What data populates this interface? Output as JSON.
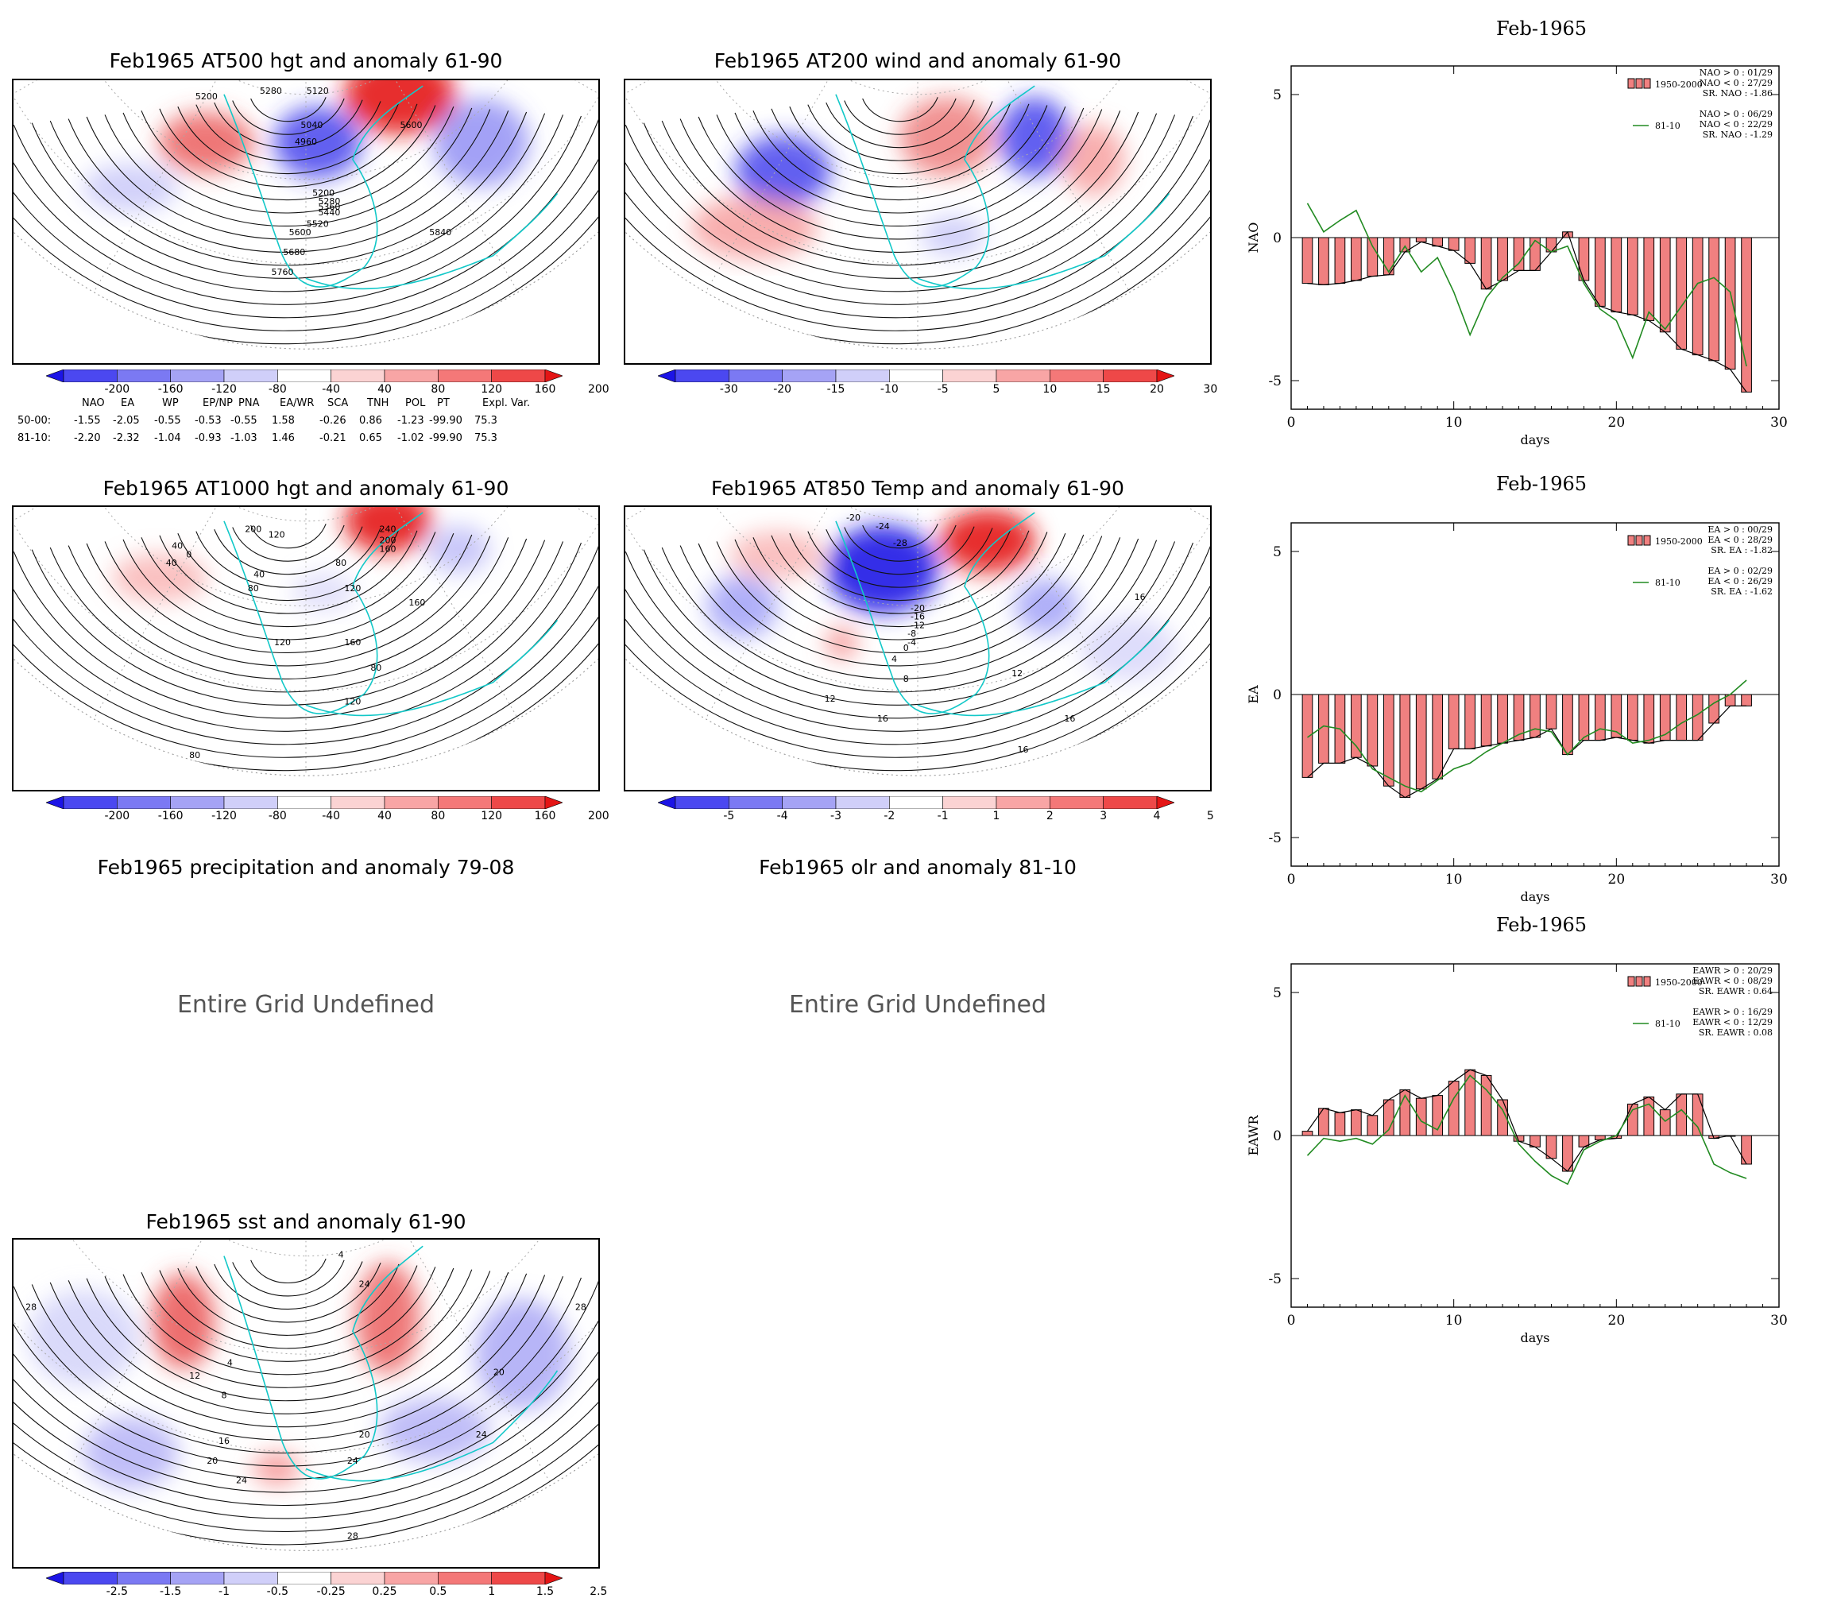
{
  "maps": [
    {
      "id": "m500",
      "title": "Feb1965 AT500 hgt and anomaly 61-90",
      "contour_labels": [
        "5200",
        "5280",
        "5120",
        "5040",
        "4960",
        "5600",
        "5200",
        "5280",
        "5360",
        "5440",
        "5520",
        "5600",
        "5680",
        "5760",
        "5840"
      ],
      "colorbar": "z200"
    },
    {
      "id": "m200",
      "title": "Feb1965 AT200 wind and anomaly 61-90",
      "contour_labels": [],
      "colorbar": "w30"
    },
    {
      "id": "m1000",
      "title": "Feb1965 AT1000 hgt and anomaly 61-90",
      "contour_labels": [
        "40",
        "0",
        "40",
        "120",
        "200",
        "240",
        "200",
        "160",
        "80",
        "40",
        "80",
        "120",
        "160",
        "120",
        "160",
        "80",
        "120",
        "80"
      ],
      "colorbar": "z200"
    },
    {
      "id": "m850",
      "title": "Feb1965 AT850 Temp and anomaly 61-90",
      "contour_labels": [
        "-20",
        "-24",
        "-28",
        "-20",
        "-16",
        "-12",
        "-8",
        "-4",
        "0",
        "4",
        "8",
        "12",
        "16",
        "12",
        "16",
        "16",
        "16"
      ],
      "colorbar": "t5"
    },
    {
      "id": "msst",
      "title": "Feb1965 sst and anomaly 61-90",
      "contour_labels": [
        "28",
        "12",
        "8",
        "4",
        "16",
        "20",
        "24",
        "20",
        "24",
        "20",
        "24",
        "28",
        "28",
        "24",
        "4"
      ],
      "colorbar": "s25"
    }
  ],
  "undefined_panels": [
    {
      "title": "Feb1965 precipitation and anomaly 79-08",
      "message": "Entire Grid Undefined"
    },
    {
      "title": "Feb1965 olr and anomaly 81-10",
      "message": "Entire Grid Undefined"
    }
  ],
  "colorbars": {
    "z200": {
      "labels": [
        "-200",
        "-160",
        "-120",
        "-80",
        "-40",
        "40",
        "80",
        "120",
        "160",
        "200"
      ]
    },
    "w30": {
      "labels": [
        "-30",
        "-20",
        "-15",
        "-10",
        "-5",
        "5",
        "10",
        "15",
        "20",
        "30"
      ]
    },
    "t5": {
      "labels": [
        "-5",
        "-4",
        "-3",
        "-2",
        "-1",
        "1",
        "2",
        "3",
        "4",
        "5"
      ]
    },
    "s25": {
      "labels": [
        "-2.5",
        "-1.5",
        "-1",
        "-0.5",
        "-0.25",
        "0.25",
        "0.5",
        "1",
        "1.5",
        "2.5"
      ]
    }
  },
  "colorbar_colors": [
    "#1c14e6",
    "#4b48f0",
    "#7b79f3",
    "#a5a3f5",
    "#d0cff9",
    "#ffffff",
    "#fbd3d3",
    "#f8a5a5",
    "#f47878",
    "#ee4848",
    "#e41515"
  ],
  "index_table": {
    "headers": [
      "NAO",
      "EA",
      "WP",
      "EP/NP",
      "PNA",
      "EA/WR",
      "SCA",
      "TNH",
      "POL",
      "PT",
      "Expl. Var."
    ],
    "rows": [
      {
        "label": "50-00:",
        "values": [
          "-1.55",
          "-2.05",
          "-0.55",
          "-0.53",
          "-0.55",
          "1.58",
          "-0.26",
          "0.86",
          "-1.23",
          "-99.90",
          "75.3"
        ]
      },
      {
        "label": "81-10:",
        "values": [
          "-2.20",
          "-2.32",
          "-1.04",
          "-0.93",
          "-1.03",
          "1.46",
          "-0.21",
          "0.65",
          "-1.02",
          "-99.90",
          "75.3"
        ]
      }
    ]
  },
  "chart_data": [
    {
      "type": "bar",
      "title": "Feb-1965",
      "xlabel": "days",
      "ylabel": "NAO",
      "xlim": [
        0,
        30
      ],
      "ylim": [
        -6,
        6
      ],
      "xticks": [
        "0",
        "10",
        "20",
        "30"
      ],
      "yticks": [
        "5",
        "0",
        "-5"
      ],
      "series": [
        {
          "name": "1950-2000",
          "kind": "bar",
          "color": "#f08080",
          "x": [
            1,
            2,
            3,
            4,
            5,
            6,
            7,
            8,
            9,
            10,
            11,
            12,
            13,
            14,
            15,
            16,
            17,
            18,
            19,
            20,
            21,
            22,
            23,
            24,
            25,
            26,
            27,
            28
          ],
          "values": [
            -1.6,
            -1.65,
            -1.6,
            -1.5,
            -1.35,
            -1.3,
            -0.5,
            -0.15,
            -0.3,
            -0.45,
            -0.9,
            -1.8,
            -1.5,
            -1.15,
            -1.15,
            -0.5,
            0.2,
            -1.5,
            -2.4,
            -2.6,
            -2.7,
            -2.9,
            -3.3,
            -3.9,
            -4.1,
            -4.3,
            -4.6,
            -5.4
          ]
        },
        {
          "name": "81-10",
          "kind": "line",
          "color": "#228b22",
          "x": [
            1,
            2,
            3,
            4,
            5,
            6,
            7,
            8,
            9,
            10,
            11,
            12,
            13,
            14,
            15,
            16,
            17,
            18,
            19,
            20,
            21,
            22,
            23,
            24,
            25,
            26,
            27,
            28
          ],
          "values": [
            1.2,
            0.2,
            0.6,
            0.95,
            -0.3,
            -1.2,
            -0.3,
            -1.2,
            -0.7,
            -1.9,
            -3.4,
            -2.1,
            -1.4,
            -0.9,
            -0.1,
            -0.5,
            -0.3,
            -1.6,
            -2.5,
            -2.9,
            -4.2,
            -2.6,
            -3.2,
            -2.4,
            -1.6,
            -1.4,
            -1.9,
            -4.5
          ]
        }
      ],
      "stats": [
        [
          "NAO > 0 : 01/29",
          "NAO < 0 : 27/29",
          "SR. NAO : -1.86"
        ],
        [
          "NAO > 0 : 06/29",
          "NAO < 0 : 22/29",
          "SR. NAO : -1.29"
        ]
      ]
    },
    {
      "type": "bar",
      "title": "Feb-1965",
      "xlabel": "days",
      "ylabel": "EA",
      "xlim": [
        0,
        30
      ],
      "ylim": [
        -6,
        6
      ],
      "xticks": [
        "0",
        "10",
        "20",
        "30"
      ],
      "yticks": [
        "5",
        "0",
        "-5"
      ],
      "series": [
        {
          "name": "1950-2000",
          "kind": "bar",
          "color": "#f08080",
          "x": [
            1,
            2,
            3,
            4,
            5,
            6,
            7,
            8,
            9,
            10,
            11,
            12,
            13,
            14,
            15,
            16,
            17,
            18,
            19,
            20,
            21,
            22,
            23,
            24,
            25,
            26,
            27,
            28
          ],
          "values": [
            -2.9,
            -2.4,
            -2.4,
            -2.2,
            -2.5,
            -3.2,
            -3.6,
            -3.3,
            -2.95,
            -1.9,
            -1.9,
            -1.8,
            -1.7,
            -1.6,
            -1.5,
            -1.2,
            -2.1,
            -1.6,
            -1.6,
            -1.5,
            -1.6,
            -1.7,
            -1.6,
            -1.6,
            -1.6,
            -1.0,
            -0.4,
            -0.4
          ]
        },
        {
          "name": "81-10",
          "kind": "line",
          "color": "#228b22",
          "x": [
            1,
            2,
            3,
            4,
            5,
            6,
            7,
            8,
            9,
            10,
            11,
            12,
            13,
            14,
            15,
            16,
            17,
            18,
            19,
            20,
            21,
            22,
            23,
            24,
            25,
            26,
            27,
            28
          ],
          "values": [
            -1.5,
            -1.1,
            -1.2,
            -1.8,
            -2.6,
            -2.9,
            -3.2,
            -3.4,
            -3.0,
            -2.6,
            -2.4,
            -2.0,
            -1.7,
            -1.4,
            -1.2,
            -1.3,
            -2.1,
            -1.5,
            -1.2,
            -1.3,
            -1.7,
            -1.6,
            -1.4,
            -1.0,
            -0.7,
            -0.3,
            0.0,
            0.5
          ]
        }
      ],
      "stats": [
        [
          "EA > 0 : 00/29",
          "EA < 0 : 28/29",
          "SR. EA : -1.82"
        ],
        [
          "EA > 0 : 02/29",
          "EA < 0 : 26/29",
          "SR. EA : -1.62"
        ]
      ]
    },
    {
      "type": "bar",
      "title": "Feb-1965",
      "xlabel": "days",
      "ylabel": "EAWR",
      "xlim": [
        0,
        30
      ],
      "ylim": [
        -6,
        6
      ],
      "xticks": [
        "0",
        "10",
        "20",
        "30"
      ],
      "yticks": [
        "5",
        "0",
        "-5"
      ],
      "series": [
        {
          "name": "1950-2000",
          "kind": "bar",
          "color": "#f08080",
          "x": [
            1,
            2,
            3,
            4,
            5,
            6,
            7,
            8,
            9,
            10,
            11,
            12,
            13,
            14,
            15,
            16,
            17,
            18,
            19,
            20,
            21,
            22,
            23,
            24,
            25,
            26,
            27,
            28
          ],
          "values": [
            0.15,
            0.95,
            0.8,
            0.9,
            0.7,
            1.25,
            1.6,
            1.3,
            1.4,
            1.9,
            2.3,
            2.1,
            1.25,
            -0.2,
            -0.4,
            -0.8,
            -1.25,
            -0.4,
            -0.15,
            -0.1,
            1.1,
            1.35,
            0.9,
            1.45,
            1.45,
            -0.1,
            0.0,
            -1.0
          ]
        },
        {
          "name": "81-10",
          "kind": "line",
          "color": "#228b22",
          "x": [
            1,
            2,
            3,
            4,
            5,
            6,
            7,
            8,
            9,
            10,
            11,
            12,
            13,
            14,
            15,
            16,
            17,
            18,
            19,
            20,
            21,
            22,
            23,
            24,
            25,
            26,
            27,
            28
          ],
          "values": [
            -0.7,
            -0.1,
            -0.2,
            -0.1,
            -0.3,
            0.2,
            1.4,
            0.5,
            0.2,
            1.3,
            2.1,
            1.6,
            0.9,
            -0.3,
            -0.9,
            -1.4,
            -1.7,
            -0.5,
            -0.2,
            0.0,
            0.9,
            1.1,
            0.5,
            0.9,
            0.3,
            -1.0,
            -1.3,
            -1.5
          ]
        }
      ],
      "stats": [
        [
          "EAWR > 0 : 20/29",
          "EAWR < 0 : 08/29",
          "SR. EAWR : 0.64"
        ],
        [
          "EAWR > 0 : 16/29",
          "EAWR < 0 : 12/29",
          "SR. EAWR : 0.08"
        ]
      ]
    }
  ]
}
